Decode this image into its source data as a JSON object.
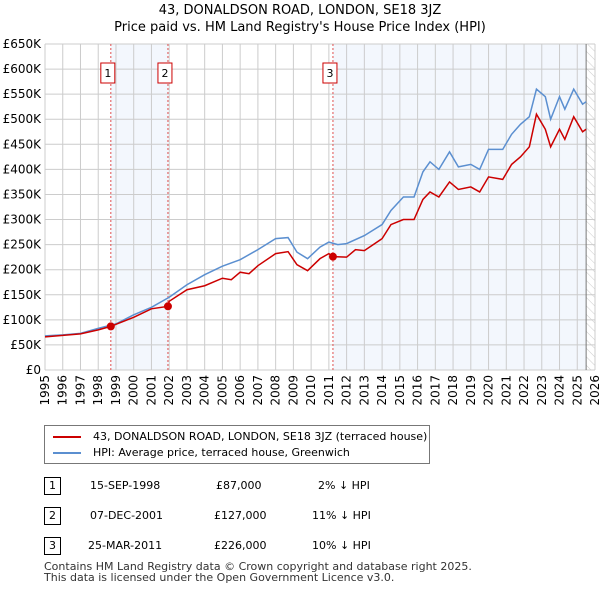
{
  "chart_data": {
    "type": "line",
    "title": "43, DONALDSON ROAD, LONDON, SE18 3JZ",
    "subtitle": "Price paid vs. HM Land Registry's House Price Index (HPI)",
    "xlim": [
      1995,
      2026
    ],
    "ylim": [
      0,
      650000
    ],
    "x_ticks": [
      "1995",
      "1996",
      "1997",
      "1998",
      "1999",
      "2000",
      "2001",
      "2002",
      "2003",
      "2004",
      "2005",
      "2006",
      "2007",
      "2008",
      "2009",
      "2010",
      "2011",
      "2012",
      "2013",
      "2014",
      "2015",
      "2016",
      "2017",
      "2018",
      "2019",
      "2020",
      "2021",
      "2022",
      "2023",
      "2024",
      "2025",
      "2026"
    ],
    "y_ticks": [
      "£0",
      "£50K",
      "£100K",
      "£150K",
      "£200K",
      "£250K",
      "£300K",
      "£350K",
      "£400K",
      "£450K",
      "£500K",
      "£550K",
      "£600K",
      "£650K"
    ],
    "grid": true,
    "data_end": 2025.5,
    "series": [
      {
        "name": "43, DONALDSON ROAD, LONDON, SE18 3JZ (terraced house)",
        "color": "#cc0000",
        "x": [
          1995,
          1996,
          1997,
          1998,
          1998.71,
          1999,
          2000,
          2001,
          2001.93,
          2002,
          2003,
          2004,
          2005,
          2005.5,
          2006,
          2006.5,
          2007,
          2008,
          2008.7,
          2009.2,
          2009.8,
          2010.5,
          2011,
          2011.23,
          2012,
          2012.5,
          2013,
          2014,
          2014.5,
          2015.2,
          2015.8,
          2016.3,
          2016.7,
          2017.2,
          2017.8,
          2018.3,
          2019,
          2019.5,
          2020,
          2020.8,
          2021.3,
          2021.8,
          2022.3,
          2022.7,
          2023.2,
          2023.5,
          2024,
          2024.3,
          2024.8,
          2025.3,
          2025.5
        ],
        "y": [
          66000,
          69000,
          72000,
          80000,
          87000,
          91000,
          105000,
          122000,
          127000,
          137000,
          160000,
          168000,
          183000,
          180000,
          195000,
          192000,
          208000,
          232000,
          236000,
          210000,
          198000,
          222000,
          232000,
          226000,
          225000,
          240000,
          238000,
          262000,
          290000,
          300000,
          300000,
          340000,
          355000,
          345000,
          375000,
          360000,
          365000,
          355000,
          385000,
          380000,
          410000,
          425000,
          445000,
          510000,
          480000,
          445000,
          480000,
          460000,
          505000,
          475000,
          480000
        ]
      },
      {
        "name": "HPI: Average price, terraced house, Greenwich",
        "color": "#5b8fd0",
        "x": [
          1995,
          1996,
          1997,
          1998,
          1999,
          2000,
          2001,
          2002,
          2003,
          2004,
          2005,
          2006,
          2007,
          2008,
          2008.7,
          2009.2,
          2009.8,
          2010.5,
          2011,
          2011.5,
          2012,
          2013,
          2014,
          2014.5,
          2015.2,
          2015.8,
          2016.3,
          2016.7,
          2017.2,
          2017.8,
          2018.3,
          2019,
          2019.5,
          2020,
          2020.8,
          2021.3,
          2021.8,
          2022.3,
          2022.7,
          2023.2,
          2023.5,
          2024,
          2024.3,
          2024.8,
          2025.3,
          2025.5
        ],
        "y": [
          68000,
          70000,
          73000,
          83000,
          92000,
          110000,
          125000,
          145000,
          170000,
          190000,
          207000,
          220000,
          240000,
          262000,
          264000,
          235000,
          222000,
          245000,
          255000,
          250000,
          252000,
          268000,
          290000,
          318000,
          345000,
          345000,
          395000,
          415000,
          400000,
          435000,
          405000,
          410000,
          400000,
          440000,
          440000,
          470000,
          490000,
          505000,
          560000,
          545000,
          500000,
          545000,
          520000,
          560000,
          530000,
          535000
        ]
      }
    ],
    "sales": [
      {
        "label": "1",
        "x": 1998.71,
        "price": 87000,
        "date": "15-SEP-1998",
        "price_text": "£87,000",
        "hpi": "2% ↓ HPI"
      },
      {
        "label": "2",
        "x": 2001.93,
        "price": 127000,
        "date": "07-DEC-2001",
        "price_text": "£127,000",
        "hpi": "11% ↓ HPI"
      },
      {
        "label": "3",
        "x": 2011.23,
        "price": 226000,
        "date": "25-MAR-2011",
        "price_text": "£226,000",
        "hpi": "10% ↓ HPI"
      }
    ]
  },
  "footer": {
    "line1": "Contains HM Land Registry data © Crown copyright and database right 2025.",
    "line2": "This data is licensed under the Open Government Licence v3.0."
  }
}
